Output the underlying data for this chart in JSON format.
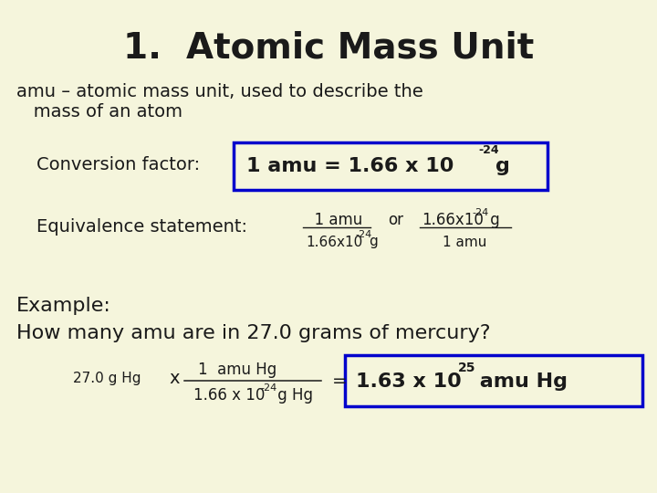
{
  "background_color": "#f5f5dc",
  "title": "1.  Atomic Mass Unit",
  "title_fontsize": 28,
  "title_color": "#1a1a1a",
  "body_color": "#1a1a1a",
  "blue_box_color": "#0000cc",
  "line1": "amu – atomic mass unit, used to describe the",
  "line2": "   mass of an atom",
  "conv_label": "Conversion factor:",
  "example_line1": "Example:",
  "example_line2": "How many amu are in 27.0 grams of mercury?",
  "font_title": 28,
  "font_body": 14,
  "font_bold": 16,
  "font_small": 11,
  "font_sup": 8
}
